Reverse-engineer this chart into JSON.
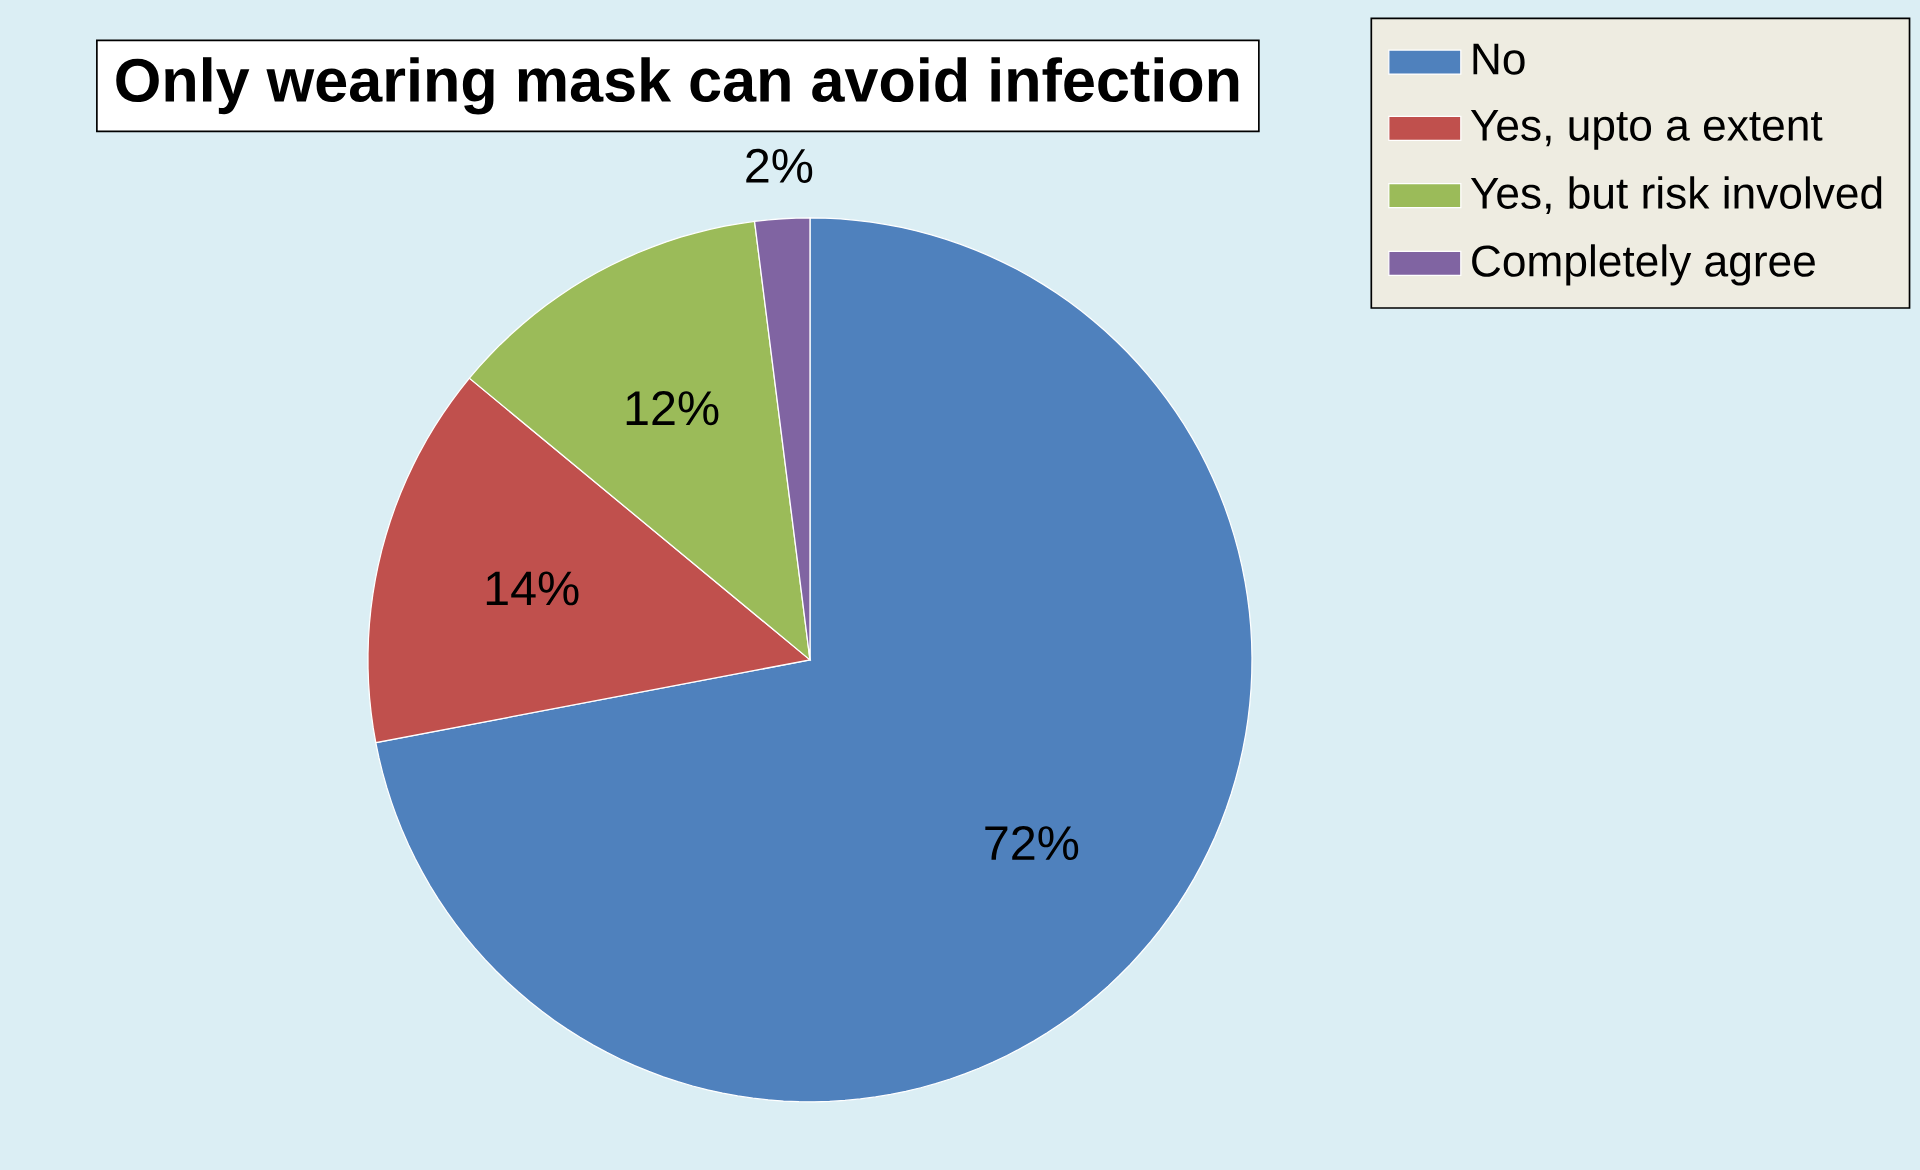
{
  "chart_data": {
    "type": "pie",
    "title": "Only wearing mask can avoid infection",
    "categories": [
      "No",
      "Yes, upto a extent",
      "Yes, but risk involved",
      "Completely agree"
    ],
    "values": [
      72,
      14,
      12,
      2
    ],
    "value_labels": [
      "72%",
      "14%",
      "12%",
      "2%"
    ],
    "colors": [
      "#4f81bd",
      "#c0504d",
      "#9bbb59",
      "#8064a2"
    ],
    "legend": "top right"
  }
}
